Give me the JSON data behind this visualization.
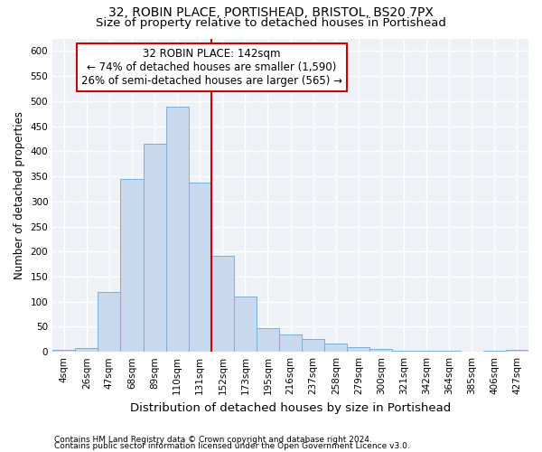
{
  "title1": "32, ROBIN PLACE, PORTISHEAD, BRISTOL, BS20 7PX",
  "title2": "Size of property relative to detached houses in Portishead",
  "xlabel": "Distribution of detached houses by size in Portishead",
  "ylabel": "Number of detached properties",
  "categories": [
    "4sqm",
    "26sqm",
    "47sqm",
    "68sqm",
    "89sqm",
    "110sqm",
    "131sqm",
    "152sqm",
    "173sqm",
    "195sqm",
    "216sqm",
    "237sqm",
    "258sqm",
    "279sqm",
    "300sqm",
    "321sqm",
    "342sqm",
    "364sqm",
    "385sqm",
    "406sqm",
    "427sqm"
  ],
  "values": [
    4,
    7,
    120,
    345,
    415,
    488,
    337,
    192,
    111,
    48,
    35,
    25,
    16,
    10,
    5,
    3,
    2,
    3,
    1,
    3,
    4
  ],
  "bar_color": "#c8d9ee",
  "bar_edge_color": "#7bafd4",
  "vline_color": "#cc0000",
  "annotation_title": "32 ROBIN PLACE: 142sqm",
  "annotation_line1": "← 74% of detached houses are smaller (1,590)",
  "annotation_line2": "26% of semi-detached houses are larger (565) →",
  "annotation_box_color": "#ffffff",
  "annotation_box_edge": "#cc0000",
  "footnote1": "Contains HM Land Registry data © Crown copyright and database right 2024.",
  "footnote2": "Contains public sector information licensed under the Open Government Licence v3.0.",
  "ylim": [
    0,
    625
  ],
  "yticks": [
    0,
    50,
    100,
    150,
    200,
    250,
    300,
    350,
    400,
    450,
    500,
    550,
    600
  ],
  "bg_color": "#eef2f7",
  "fig_bg": "#ffffff",
  "title1_fontsize": 10,
  "title2_fontsize": 9.5,
  "ylabel_fontsize": 8.5,
  "xlabel_fontsize": 9.5,
  "tick_fontsize": 7.5,
  "annot_fontsize": 8.5,
  "footnote_fontsize": 6.5
}
